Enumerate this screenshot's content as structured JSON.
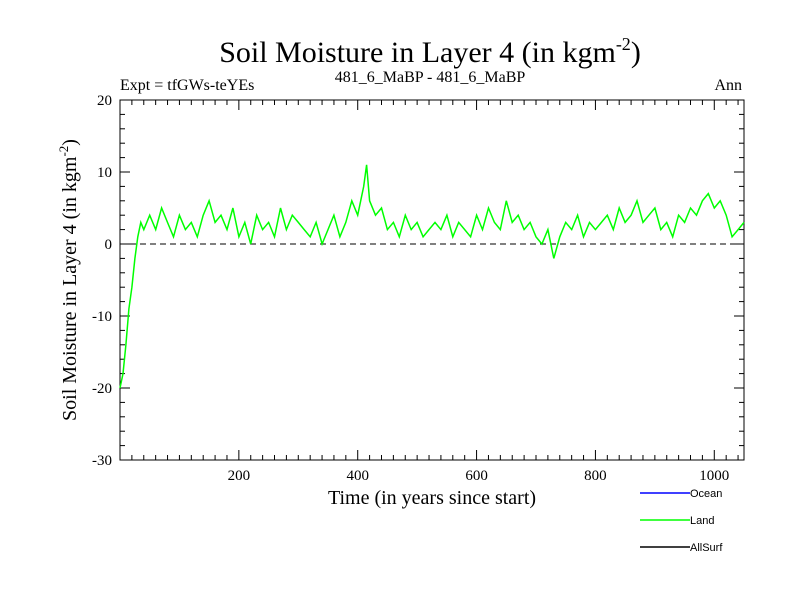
{
  "chart_data": {
    "type": "line",
    "title": "Soil Moisture in Layer 4 (in kgm",
    "title_sup": "-2",
    "title_close": ")",
    "subtitle_left": "Expt = tfGWs-teYEs",
    "subtitle_center": "481_6_MaBP - 481_6_MaBP",
    "subtitle_right": "Ann",
    "xlabel": "Time (in years since start)",
    "ylabel": "Soil Moisture in Layer 4 (in kgm",
    "ylabel_sup": "-2",
    "ylabel_close": ")",
    "xlim": [
      0,
      1050
    ],
    "ylim": [
      -30,
      20
    ],
    "xticks": [
      200,
      400,
      600,
      800,
      1000
    ],
    "yticks": [
      -30,
      -20,
      -10,
      0,
      10,
      20
    ],
    "zero_line": 0,
    "series": [
      {
        "name": "Ocean",
        "color": "#0000ff",
        "values": []
      },
      {
        "name": "Land",
        "color": "#00ff00",
        "x": [
          0,
          5,
          10,
          15,
          20,
          25,
          30,
          35,
          40,
          50,
          60,
          70,
          80,
          90,
          100,
          110,
          120,
          130,
          140,
          150,
          160,
          170,
          180,
          190,
          200,
          210,
          220,
          230,
          240,
          250,
          260,
          270,
          280,
          290,
          300,
          310,
          320,
          330,
          340,
          350,
          360,
          370,
          380,
          390,
          400,
          410,
          415,
          420,
          430,
          440,
          450,
          460,
          470,
          480,
          490,
          500,
          510,
          520,
          530,
          540,
          550,
          560,
          570,
          580,
          590,
          600,
          610,
          620,
          630,
          640,
          650,
          660,
          670,
          680,
          690,
          700,
          710,
          720,
          730,
          740,
          750,
          760,
          770,
          780,
          790,
          800,
          810,
          820,
          830,
          840,
          850,
          860,
          870,
          880,
          890,
          900,
          910,
          920,
          930,
          940,
          950,
          960,
          970,
          980,
          990,
          1000,
          1010,
          1020,
          1030,
          1040,
          1050
        ],
        "values": [
          -20,
          -18,
          -14,
          -9,
          -6,
          -2,
          1,
          3,
          2,
          4,
          2,
          5,
          3,
          1,
          4,
          2,
          3,
          1,
          4,
          6,
          3,
          4,
          2,
          5,
          1,
          3,
          0,
          4,
          2,
          3,
          1,
          5,
          2,
          4,
          3,
          2,
          1,
          3,
          0,
          2,
          4,
          1,
          3,
          6,
          4,
          8,
          11,
          6,
          4,
          5,
          2,
          3,
          1,
          4,
          2,
          3,
          1,
          2,
          3,
          2,
          4,
          1,
          3,
          2,
          1,
          4,
          2,
          5,
          3,
          2,
          6,
          3,
          4,
          2,
          3,
          1,
          0,
          2,
          -2,
          1,
          3,
          2,
          4,
          1,
          3,
          2,
          3,
          4,
          2,
          5,
          3,
          4,
          6,
          3,
          4,
          5,
          2,
          3,
          1,
          4,
          3,
          5,
          4,
          6,
          7,
          5,
          6,
          4,
          1,
          2,
          3
        ]
      },
      {
        "name": "AllSurf",
        "color": "#000000",
        "values": []
      }
    ],
    "legend": [
      "Ocean",
      "Land",
      "AllSurf"
    ],
    "legend_position": "bottom-right"
  }
}
